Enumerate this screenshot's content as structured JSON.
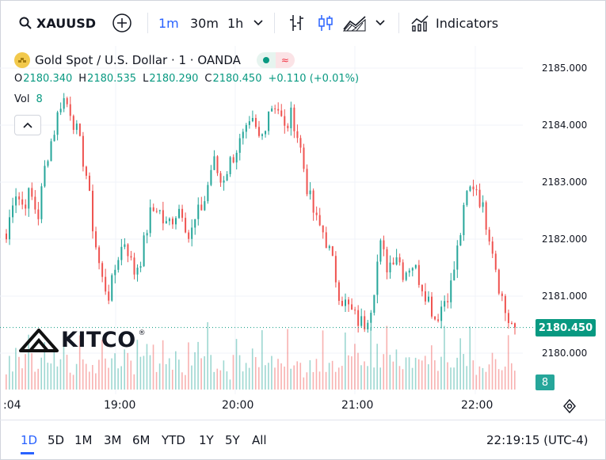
{
  "toolbar": {
    "symbol": "XAUUSD",
    "intervals": [
      "1m",
      "30m",
      "1h"
    ],
    "active_interval": "1m",
    "indicators_label": "Indicators"
  },
  "legend": {
    "title": "Gold Spot / U.S. Dollar · 1 · OANDA",
    "open_key": "O",
    "open": "2180.340",
    "high_key": "H",
    "high": "2180.535",
    "low_key": "L",
    "low": "2180.290",
    "close_key": "C",
    "close": "2180.450",
    "change": "+0.110 (+0.01%)",
    "vol_label": "Vol",
    "vol_value": "8"
  },
  "price_axis": {
    "ticks": [
      "2185.000",
      "2184.000",
      "2183.000",
      "2182.000",
      "2181.000",
      "2180.000"
    ],
    "last_price": "2180.450",
    "last_volume": "8"
  },
  "time_axis": {
    "ticks": [
      ":04",
      "19:00",
      "20:00",
      "21:00",
      "22:00"
    ]
  },
  "watermark": {
    "text": "KITCO",
    "mark": "®"
  },
  "bottom": {
    "ranges": [
      "1D",
      "5D",
      "1M",
      "3M",
      "6M",
      "YTD",
      "1Y",
      "5Y",
      "All"
    ],
    "active_range": "1D",
    "clock": "22:19:15 (UTC-4)"
  },
  "colors": {
    "up": "#26a69a",
    "down": "#ef5350",
    "accent": "#2962ff",
    "price_badge": "#089981"
  },
  "chart_data": {
    "type": "candlestick",
    "ylim": [
      2179.3,
      2185.3
    ],
    "x_ticks": [
      ":04",
      "19:00",
      "20:00",
      "21:00",
      "22:00"
    ],
    "closes": [
      2182.0,
      2182.9,
      2182.6,
      2182.8,
      2182.4,
      2183.4,
      2183.9,
      2184.5,
      2184.3,
      2183.8,
      2183.2,
      2182.1,
      2181.3,
      2181.0,
      2181.7,
      2182.0,
      2181.4,
      2181.7,
      2182.4,
      2182.6,
      2182.2,
      2182.4,
      2182.6,
      2182.0,
      2182.4,
      2182.7,
      2183.4,
      2183.0,
      2183.3,
      2183.6,
      2183.8,
      2184.0,
      2183.7,
      2184.3,
      2184.4,
      2183.9,
      2184.2,
      2183.6,
      2182.8,
      2182.3,
      2182.1,
      2181.6,
      2181.0,
      2180.8,
      2180.6,
      2180.5,
      2180.9,
      2181.9,
      2181.5,
      2181.8,
      2181.4,
      2181.6,
      2181.3,
      2181.0,
      2180.6,
      2180.9,
      2181.2,
      2182.0,
      2182.8,
      2183.0,
      2182.5,
      2182.0,
      2181.2,
      2180.6,
      2180.45
    ],
    "volumes": [
      6,
      9,
      5,
      12,
      7,
      4,
      10,
      14,
      8,
      5,
      9,
      6,
      11,
      7,
      5,
      13,
      8,
      6,
      9,
      10,
      7,
      5,
      8,
      12,
      6,
      9,
      7,
      11,
      5,
      8,
      10,
      6,
      9,
      7,
      12,
      8,
      5,
      10,
      7,
      9,
      6,
      11,
      8,
      13,
      10,
      7,
      9,
      6,
      8,
      12,
      7,
      10,
      5,
      9,
      14,
      8,
      6,
      11,
      9,
      7,
      12,
      10,
      8,
      13,
      8
    ]
  }
}
